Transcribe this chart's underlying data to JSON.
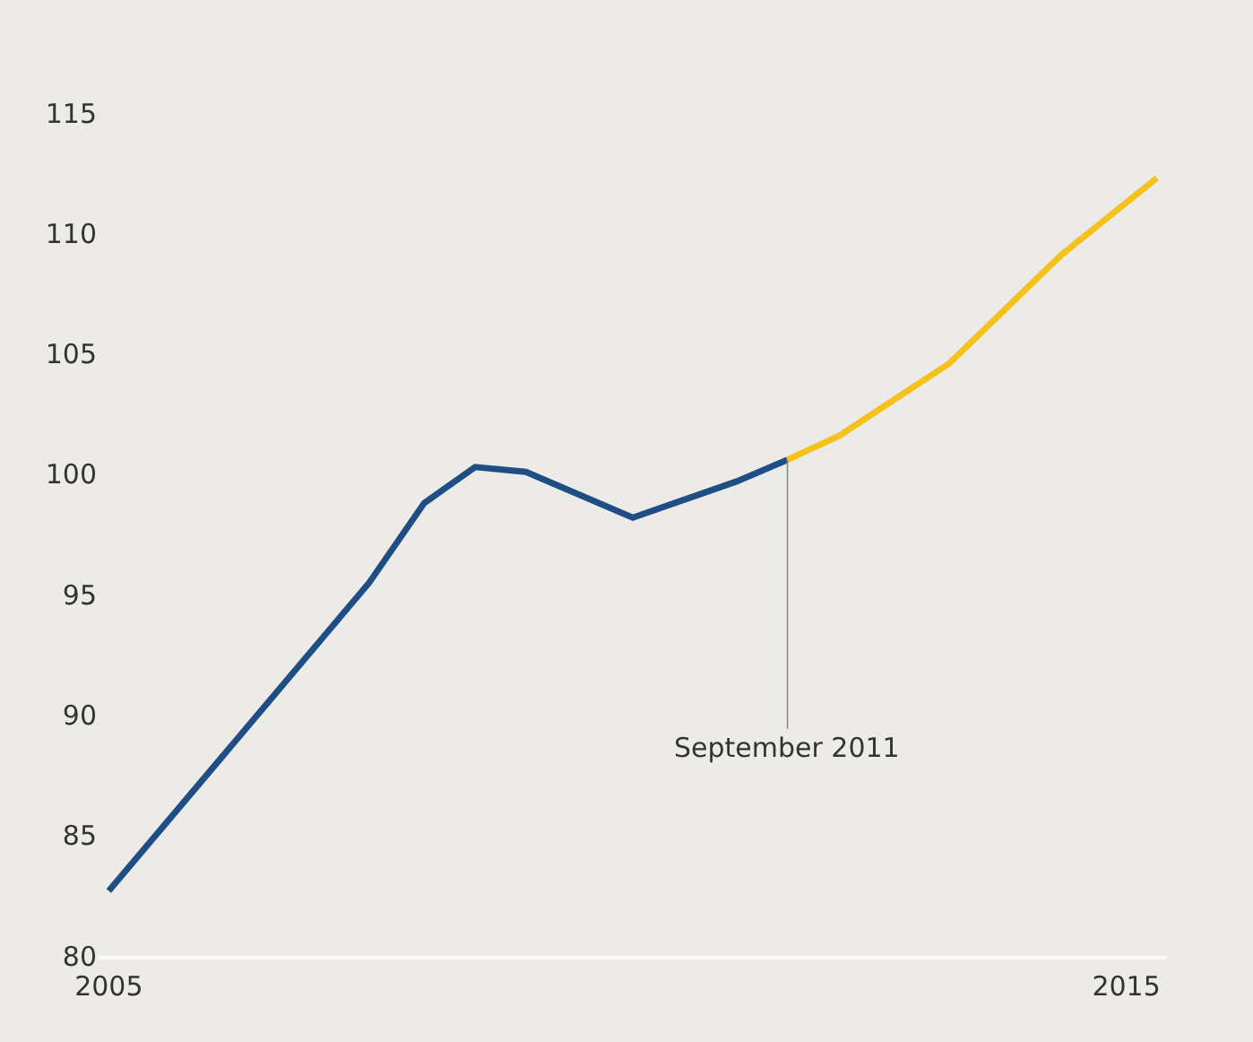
{
  "chart_data": {
    "type": "line",
    "series": [
      {
        "color": "#1f4e85",
        "x": [
          2005.0,
          2007.56,
          2008.1,
          2008.6,
          2009.1,
          2010.15,
          2011.17,
          2011.67
        ],
        "values": [
          82.7,
          95.5,
          98.8,
          100.3,
          100.1,
          98.2,
          99.7,
          100.6
        ]
      },
      {
        "color": "#f5c21b",
        "x": [
          2011.67,
          2012.18,
          2013.26,
          2014.36,
          2015.3
        ],
        "values": [
          100.6,
          101.6,
          104.6,
          109.1,
          112.3
        ]
      }
    ],
    "xlim": [
      2004.9,
      2015.4
    ],
    "xticks": [
      2005,
      2015
    ],
    "ylim": [
      80,
      115
    ],
    "yticks": [
      80,
      85,
      90,
      95,
      100,
      105,
      110,
      115
    ],
    "annotations": [
      {
        "text": "September 2011",
        "x": 2011.67,
        "y": 100.6
      }
    ],
    "grid": false,
    "marker": "none",
    "line_style": "solid"
  }
}
